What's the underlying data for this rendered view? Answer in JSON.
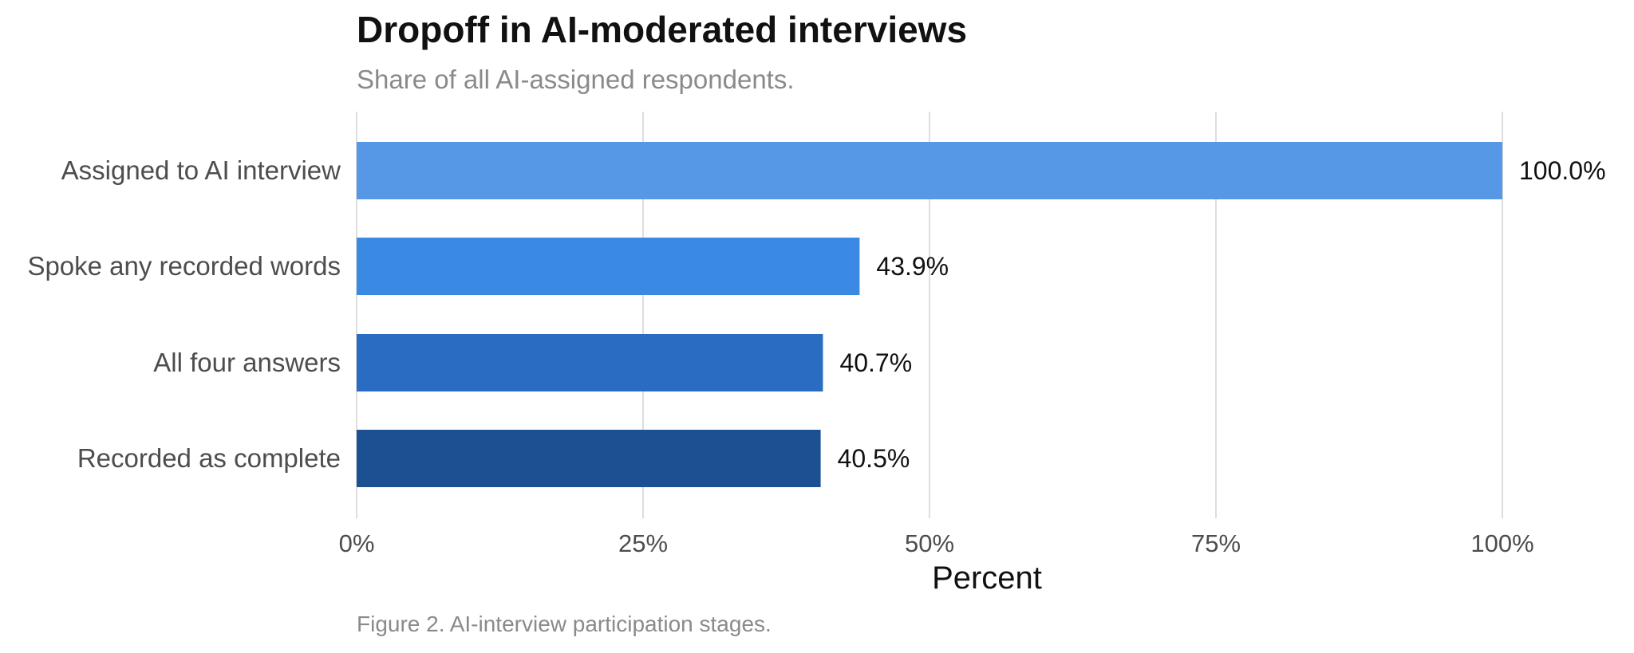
{
  "chart_data": {
    "type": "bar",
    "orientation": "horizontal",
    "title": "Dropoff in AI-moderated interviews",
    "subtitle": "Share of all AI-assigned respondents.",
    "caption": "Figure 2. AI-interview participation stages.",
    "xlabel": "Percent",
    "ylabel": "",
    "xlim": [
      0,
      100
    ],
    "x_ticks": [
      0,
      25,
      50,
      75,
      100
    ],
    "x_tick_labels": [
      "0%",
      "25%",
      "50%",
      "75%",
      "100%"
    ],
    "grid": "vertical",
    "legend": "none",
    "categories": [
      "Assigned to AI interview",
      "Spoke any recorded words",
      "All four answers",
      "Recorded as complete"
    ],
    "values": [
      100.0,
      43.9,
      40.7,
      40.5
    ],
    "value_labels": [
      "100.0%",
      "43.9%",
      "40.7%",
      "40.5%"
    ],
    "colors": [
      "#5697e6",
      "#3a89e3",
      "#2a6cc1",
      "#1b5193"
    ]
  }
}
